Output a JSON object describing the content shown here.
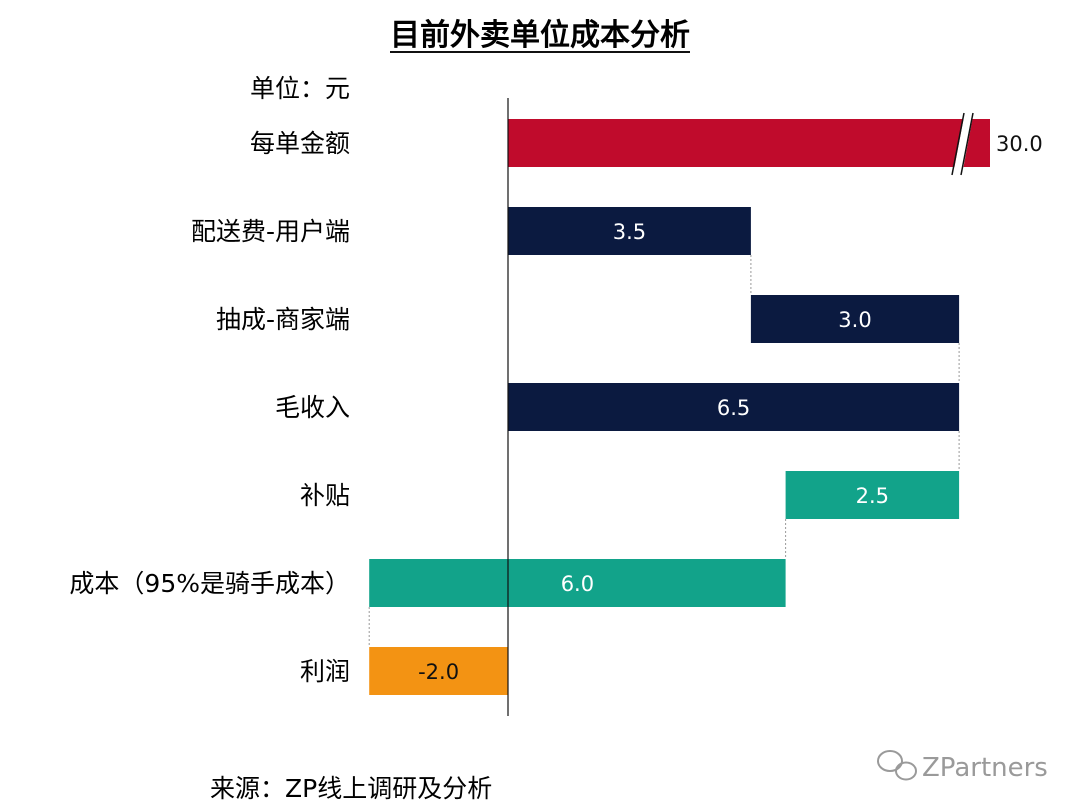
{
  "chart_data": {
    "type": "bar",
    "subtype": "waterfall",
    "title": "目前外卖单位成本分析",
    "unit_label": "单位：元",
    "source": "来源：ZP线上调研及分析",
    "watermark": "ZPartners",
    "axis_break_on": "每单金额",
    "categories": [
      "每单金额",
      "配送费-用户端",
      "抽成-商家端",
      "毛收入",
      "补贴",
      "成本（95%是骑手成本）",
      "利润"
    ],
    "bars": [
      {
        "category": "每单金额",
        "value": 30.0,
        "start": 0,
        "end": 30.0,
        "label": "30.0",
        "color": "#c00b2c"
      },
      {
        "category": "配送费-用户端",
        "value": 3.5,
        "start": 0,
        "end": 3.5,
        "label": "3.5",
        "color": "#0b1a40"
      },
      {
        "category": "抽成-商家端",
        "value": 3.0,
        "start": 3.5,
        "end": 6.5,
        "label": "3.0",
        "color": "#0b1a40"
      },
      {
        "category": "毛收入",
        "value": 6.5,
        "start": 0,
        "end": 6.5,
        "label": "6.5",
        "color": "#0b1a40"
      },
      {
        "category": "补贴",
        "value": 2.5,
        "start": 4.0,
        "end": 6.5,
        "label": "2.5",
        "color": "#12a38a"
      },
      {
        "category": "成本（95%是骑手成本）",
        "value": 6.0,
        "start": -2.0,
        "end": 4.0,
        "label": "6.0",
        "color": "#12a38a"
      },
      {
        "category": "利润",
        "value": -2.0,
        "start": -2.0,
        "end": 0,
        "label": "-2.0",
        "color": "#f39313"
      }
    ]
  }
}
